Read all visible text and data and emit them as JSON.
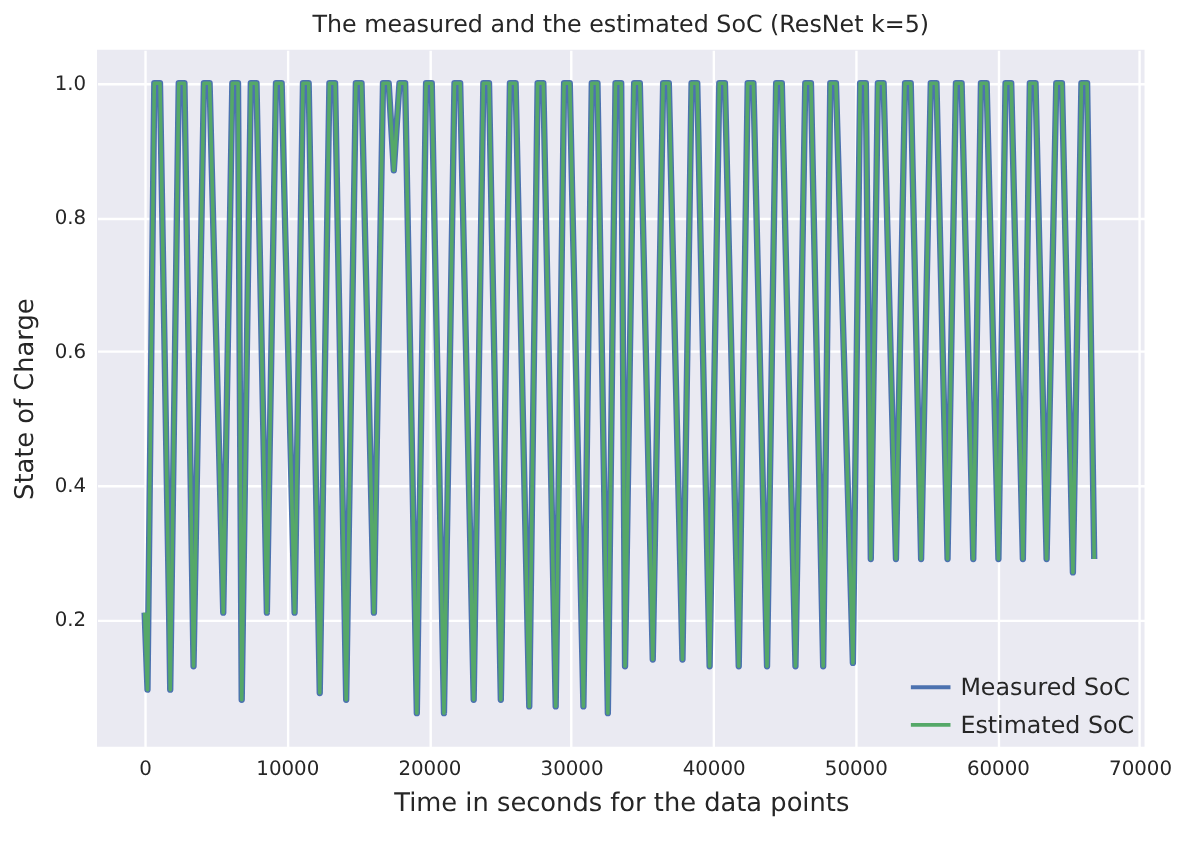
{
  "chart_data": {
    "type": "line",
    "title": "The measured and the estimated SoC (ResNet k=5)",
    "xlabel": "Time in seconds for the data points",
    "ylabel": "State of Charge",
    "x": [
      0,
      200,
      680,
      1080,
      1720,
      1800,
      2400,
      2800,
      3440,
      4170,
      4570,
      5530,
      6170,
      6570,
      6830,
      7470,
      7870,
      8600,
      9240,
      9640,
      10550,
      11140,
      11540,
      12320,
      13000,
      13400,
      14180,
      14860,
      15260,
      16130,
      16770,
      17170,
      17530,
      17930,
      18330,
      19150,
      19800,
      20200,
      21060,
      21800,
      22200,
      23150,
      23830,
      24230,
      25060,
      25700,
      26100,
      27060,
      27650,
      28050,
      28920,
      29510,
      29910,
      30870,
      31460,
      31860,
      32590,
      33130,
      33530,
      33800,
      34440,
      34840,
      35750,
      36480,
      36880,
      37840,
      38480,
      38880,
      39750,
      40430,
      40830,
      41800,
      42430,
      42830,
      43790,
      44430,
      44830,
      45790,
      46480,
      46880,
      47740,
      48240,
      48640,
      49830,
      50340,
      50740,
      51090,
      51590,
      51990,
      52860,
      53500,
      53900,
      54630,
      55310,
      55710,
      56490,
      57080,
      57480,
      58300,
      58840,
      59240,
      60070,
      60570,
      60970,
      61790,
      62280,
      62680,
      63460,
      64140,
      64540,
      65310,
      65910,
      66310,
      66810
    ],
    "series": [
      {
        "name": "Measured SoC",
        "color": "#4c72b0",
        "values": [
          0.21,
          0.095,
          1.0,
          1.0,
          0.21,
          0.095,
          1.0,
          1.0,
          0.13,
          1.0,
          1.0,
          0.21,
          1.0,
          1.0,
          0.08,
          1.0,
          1.0,
          0.21,
          1.0,
          1.0,
          0.21,
          1.0,
          1.0,
          0.09,
          1.0,
          1.0,
          0.08,
          1.0,
          1.0,
          0.21,
          1.0,
          1.0,
          0.87,
          1.0,
          1.0,
          0.06,
          1.0,
          1.0,
          0.06,
          1.0,
          1.0,
          0.08,
          1.0,
          1.0,
          0.08,
          1.0,
          1.0,
          0.07,
          1.0,
          1.0,
          0.07,
          1.0,
          1.0,
          0.07,
          1.0,
          1.0,
          0.06,
          1.0,
          1.0,
          0.13,
          1.0,
          1.0,
          0.14,
          1.0,
          1.0,
          0.14,
          1.0,
          1.0,
          0.13,
          1.0,
          1.0,
          0.13,
          1.0,
          1.0,
          0.13,
          1.0,
          1.0,
          0.13,
          1.0,
          1.0,
          0.13,
          1.0,
          1.0,
          0.135,
          1.0,
          1.0,
          0.29,
          1.0,
          1.0,
          0.29,
          1.0,
          1.0,
          0.29,
          1.0,
          1.0,
          0.29,
          1.0,
          1.0,
          0.29,
          1.0,
          1.0,
          0.29,
          1.0,
          1.0,
          0.29,
          1.0,
          1.0,
          0.29,
          1.0,
          1.0,
          0.27,
          1.0,
          1.0,
          0.29
        ]
      },
      {
        "name": "Estimated SoC",
        "color": "#55a868",
        "values": [
          0.21,
          0.095,
          1.0,
          1.0,
          0.21,
          0.095,
          1.0,
          1.0,
          0.13,
          1.0,
          1.0,
          0.21,
          1.0,
          1.0,
          0.08,
          1.0,
          1.0,
          0.21,
          1.0,
          1.0,
          0.21,
          1.0,
          1.0,
          0.09,
          1.0,
          1.0,
          0.08,
          1.0,
          1.0,
          0.21,
          1.0,
          1.0,
          0.87,
          1.0,
          1.0,
          0.06,
          1.0,
          1.0,
          0.06,
          1.0,
          1.0,
          0.08,
          1.0,
          1.0,
          0.08,
          1.0,
          1.0,
          0.07,
          1.0,
          1.0,
          0.07,
          1.0,
          1.0,
          0.07,
          1.0,
          1.0,
          0.06,
          1.0,
          1.0,
          0.13,
          1.0,
          1.0,
          0.14,
          1.0,
          1.0,
          0.14,
          1.0,
          1.0,
          0.13,
          1.0,
          1.0,
          0.13,
          1.0,
          1.0,
          0.13,
          1.0,
          1.0,
          0.13,
          1.0,
          1.0,
          0.13,
          1.0,
          1.0,
          0.135,
          1.0,
          1.0,
          0.29,
          1.0,
          1.0,
          0.29,
          1.0,
          1.0,
          0.29,
          1.0,
          1.0,
          0.29,
          1.0,
          1.0,
          0.29,
          1.0,
          1.0,
          0.29,
          1.0,
          1.0,
          0.29,
          1.0,
          1.0,
          0.29,
          1.0,
          1.0,
          0.27,
          1.0,
          1.0,
          0.29
        ]
      }
    ],
    "xlim": [
      -3350,
      70350
    ],
    "xticks": [
      0,
      10000,
      20000,
      30000,
      40000,
      50000,
      60000,
      70000
    ],
    "ylim": [
      0.01,
      1.05
    ],
    "yticks": [
      0.2,
      0.4,
      0.6,
      0.8,
      {
        "value": 1.0,
        "label": "1.0"
      }
    ],
    "grid": true,
    "legend": "bottom right"
  }
}
